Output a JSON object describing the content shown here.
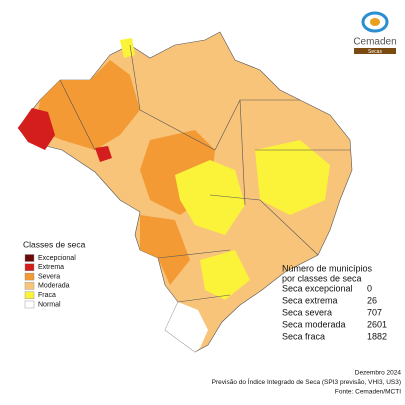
{
  "logo": {
    "name": "Cemaden",
    "tag": "Secas"
  },
  "legend": {
    "title": "Classes de seca",
    "items": [
      {
        "label": "Excepcional",
        "color": "#6b0a0a"
      },
      {
        "label": "Extrema",
        "color": "#d41e1e"
      },
      {
        "label": "Severa",
        "color": "#f39a34"
      },
      {
        "label": "Moderada",
        "color": "#f8c47a"
      },
      {
        "label": "Fraca",
        "color": "#fbf23a"
      },
      {
        "label": "Normal",
        "color": "#ffffff"
      }
    ]
  },
  "summary": {
    "title": [
      "Número de municípios",
      "por classes de seca"
    ],
    "rows": [
      [
        "Seca excepcional",
        0
      ],
      [
        "Seca extrema",
        26
      ],
      [
        "Seca severa",
        707
      ],
      [
        "Seca moderada",
        2601
      ],
      [
        "Seca fraca",
        1882
      ]
    ]
  },
  "footer": [
    "Dezembro 2024",
    "Previsão do Índice Integrado de Seca (SPI3 previsão, VHI3, US3)",
    "Fonte: Cemaden/MCTI"
  ]
}
